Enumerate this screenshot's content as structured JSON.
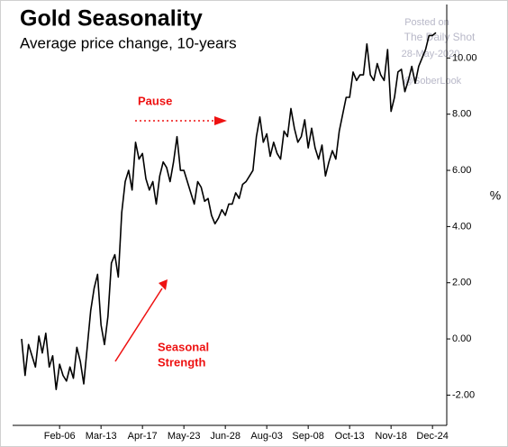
{
  "chart_data": {
    "type": "line",
    "title": "Gold Seasonality",
    "subtitle": "Average price change, 10-years",
    "y_label": "%",
    "annotations": [
      "Pause",
      "Seasonal",
      "Strength"
    ],
    "watermark": [
      "Posted on",
      "The Daily Shot",
      "28-May-2020",
      "@SoberLook"
    ],
    "color": "#000000",
    "categories": [
      null,
      null,
      null,
      null,
      null,
      null,
      null,
      null,
      null,
      null,
      null,
      "Feb-06",
      null,
      null,
      null,
      null,
      null,
      null,
      null,
      null,
      null,
      null,
      null,
      "Mar-13",
      null,
      null,
      null,
      null,
      null,
      null,
      null,
      null,
      null,
      null,
      null,
      "Apr-17",
      null,
      null,
      null,
      null,
      null,
      null,
      null,
      null,
      null,
      null,
      null,
      "May-23",
      null,
      null,
      null,
      null,
      null,
      null,
      null,
      null,
      null,
      null,
      null,
      "Jun-28",
      null,
      null,
      null,
      null,
      null,
      null,
      null,
      null,
      null,
      null,
      null,
      "Aug-03",
      null,
      null,
      null,
      null,
      null,
      null,
      null,
      null,
      null,
      null,
      null,
      "Sep-08",
      null,
      null,
      null,
      null,
      null,
      null,
      null,
      null,
      null,
      null,
      null,
      "Oct-13",
      null,
      null,
      null,
      null,
      null,
      null,
      null,
      null,
      null,
      null,
      null,
      "Nov-18",
      null,
      null,
      null,
      null,
      null,
      null,
      null,
      null,
      null,
      null,
      null,
      "Dec-24",
      null
    ],
    "values": [
      0,
      -1.3,
      -0.2,
      -0.6,
      -1.0,
      0.1,
      -0.5,
      0.2,
      -1.0,
      -0.6,
      -1.8,
      -0.9,
      -1.3,
      -1.5,
      -1.0,
      -1.4,
      -0.3,
      -0.8,
      -1.6,
      -0.3,
      1.0,
      1.8,
      2.3,
      0.5,
      -0.2,
      0.8,
      2.7,
      3.0,
      2.2,
      4.5,
      5.6,
      6.0,
      5.3,
      7.0,
      6.4,
      6.6,
      5.7,
      5.3,
      5.6,
      4.8,
      5.8,
      6.3,
      6.1,
      5.6,
      6.3,
      7.2,
      6.0,
      6.0,
      5.6,
      5.2,
      4.8,
      5.6,
      5.4,
      4.9,
      5.0,
      4.4,
      4.1,
      4.3,
      4.6,
      4.4,
      4.8,
      4.8,
      5.2,
      5.0,
      5.5,
      5.6,
      5.8,
      6.0,
      7.2,
      7.9,
      7.0,
      7.3,
      6.5,
      7.0,
      6.6,
      6.4,
      7.4,
      7.2,
      8.2,
      7.5,
      7.0,
      7.2,
      7.8,
      6.8,
      7.5,
      6.8,
      6.4,
      6.9,
      5.8,
      6.3,
      6.7,
      6.4,
      7.4,
      8.0,
      8.6,
      8.6,
      9.5,
      9.2,
      9.4,
      9.4,
      10.5,
      9.4,
      9.2,
      9.8,
      9.4,
      9.2,
      10.3,
      8.1,
      8.6,
      9.5,
      9.6,
      8.8,
      9.2,
      9.7,
      9.1,
      9.7,
      10.0,
      10.3,
      10.8,
      10.8,
      10.9
    ],
    "ylim": [
      -3,
      12
    ],
    "yticks": [
      {
        "value": -2,
        "label": "-2.00"
      },
      {
        "value": 0,
        "label": "0.00"
      },
      {
        "value": 2,
        "label": "2.00"
      },
      {
        "value": 4,
        "label": "4.00"
      },
      {
        "value": 6,
        "label": "6.00"
      },
      {
        "value": 8,
        "label": "8.00"
      },
      {
        "value": 10,
        "label": "10.00"
      }
    ],
    "y_axis_side": "right"
  }
}
